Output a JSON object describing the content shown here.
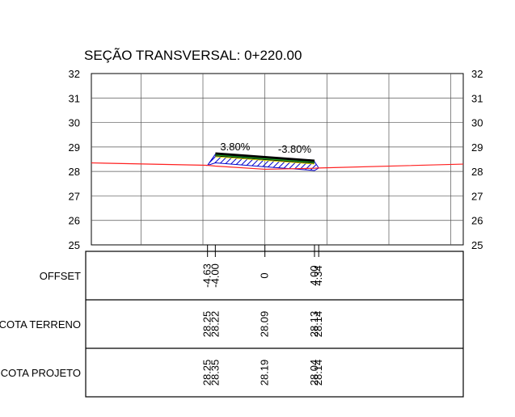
{
  "chart_data": {
    "type": "cross-section",
    "title": "SEÇÃO TRANSVERSAL: 0+220.00",
    "ylim": [
      25,
      32
    ],
    "yticks": [
      "25",
      "26",
      "27",
      "28",
      "29",
      "30",
      "31",
      "32"
    ],
    "xlim": [
      -14,
      16
    ],
    "grid": true,
    "slope_labels": [
      {
        "text": "3.80%",
        "x": -2.4,
        "y": 29.0
      },
      {
        "text": "-3.80%",
        "x": 2.4,
        "y": 28.9
      }
    ],
    "terrain": {
      "x": [
        -14,
        -4.63,
        -4.0,
        0,
        4.0,
        4.34,
        16
      ],
      "y": [
        28.35,
        28.25,
        28.22,
        28.09,
        28.13,
        28.14,
        28.3
      ]
    },
    "pavement_top": {
      "x": [
        -4.0,
        0,
        4.0
      ],
      "y": [
        28.7,
        28.55,
        28.4
      ]
    },
    "design": {
      "x": [
        -4.63,
        -4.0,
        0,
        4.0,
        4.34
      ],
      "y": [
        28.25,
        28.35,
        28.19,
        28.04,
        28.14
      ]
    },
    "station_marks": [
      -4.63,
      -4.0,
      0,
      4.0,
      4.34
    ],
    "table": {
      "rows": [
        {
          "label": "OFFSET",
          "values": [
            "-4.63",
            "-4.00",
            "0",
            "4.00",
            "4.34"
          ]
        },
        {
          "label": "COTA TERRENO",
          "values": [
            "28.25",
            "28.22",
            "28.09",
            "28.13",
            "28.14"
          ]
        },
        {
          "label": "COTA PROJETO",
          "values": [
            "28.25",
            "28.35",
            "28.19",
            "28.04",
            "28.14"
          ]
        }
      ],
      "x": [
        -4.63,
        -4.0,
        0,
        4.0,
        4.34
      ]
    },
    "colors": {
      "terrain": "#ff2020",
      "fill": "#0000cc",
      "pavement": "#000000",
      "axis_center": "#22aa22",
      "grid": "#555555"
    }
  }
}
